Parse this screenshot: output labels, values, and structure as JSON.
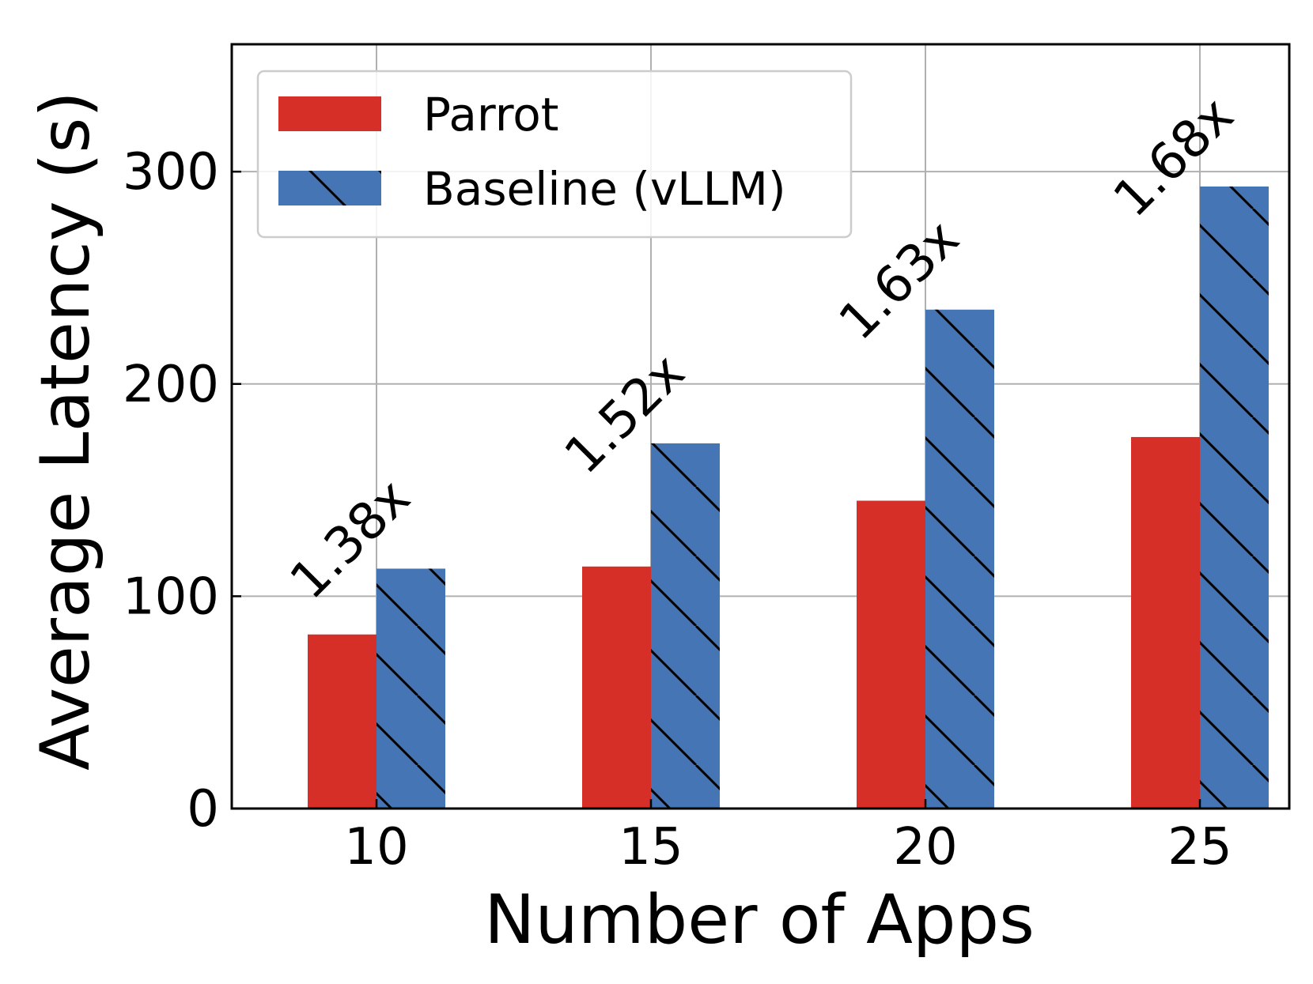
{
  "chart_data": {
    "type": "bar",
    "title": "",
    "xlabel": "Number of Apps",
    "ylabel": "Average Latency (s)",
    "categories": [
      "10",
      "15",
      "20",
      "25"
    ],
    "series": [
      {
        "name": "Parrot",
        "values": [
          82,
          114,
          145,
          175
        ],
        "color": "#d62f27",
        "hatch": "none"
      },
      {
        "name": "Baseline (vLLM)",
        "values": [
          113,
          172,
          235,
          293
        ],
        "color": "#4575b4",
        "hatch": "backslash"
      }
    ],
    "annotations": [
      "1.38x",
      "1.52x",
      "1.63x",
      "1.68x"
    ],
    "ylim": [
      0,
      360
    ],
    "yticks": [
      0,
      100,
      200,
      300
    ],
    "grid": true,
    "legend_position": "top-left"
  }
}
